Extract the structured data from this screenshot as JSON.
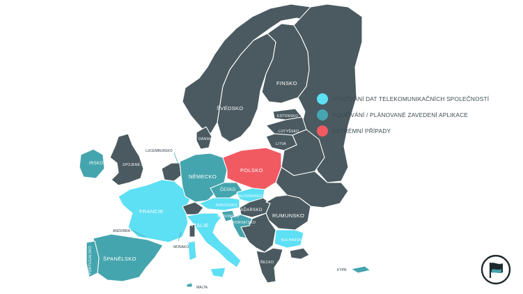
{
  "colors": {
    "dark": "#4a5a60",
    "telecom_data": "#5ddff4",
    "app": "#45a5ae",
    "extreme": "#f25a62",
    "text": "#3b4a50"
  },
  "legend": [
    {
      "label": "VYUŽÍVÁNÍ DAT TELEKOMUNIKAČNÍCH SPOLEČNOSTÍ",
      "color": "#5ddff4"
    },
    {
      "label": "POUŽÍVÁNÍ / PLÁNOVANÉ ZAVEDENÍ APLIKACE",
      "color": "#45a5ae"
    },
    {
      "label": "EXTRÉMNÍ PŘÍPADY",
      "color": "#f25a62"
    }
  ],
  "countries": {
    "finsko": "FINSKO",
    "svedsko": "ŠVÉDSKO",
    "estonsko": "ESTONSKO",
    "lotyssko": "LOTYŠSKO",
    "litva": "LITVA",
    "dansko": "DÁNSKO",
    "irsko": "IRSKO",
    "uk": "SPOJENÉ KRÁLOVSTVÍ",
    "lucembursko": "LUCEMBURSKO",
    "nemecko": "NĚMECKO",
    "polsko": "POLSKO",
    "cesko": "ČESKO",
    "slovensko": "SLOVENSKO",
    "rakousko": "RAKOUSKO",
    "madarsko": "MAĎARSKO",
    "rumunsko": "RUMUNSKO",
    "francie": "FRANCIE",
    "andorra": "ANDORRA",
    "monako": "MONAKO",
    "italie": "ITÁLIE",
    "slovinsko": "SLOVINSKO",
    "chorvatsko": "CHORVATSKO",
    "bulharsko": "BULHARSKO",
    "recko": "ŘECKO",
    "spanelsko": "ŠPANĚLSKO",
    "portugalsko": "PORTUGALSKO",
    "malta": "MALTA",
    "kypr": "KYPR"
  },
  "logo": "pirate-party-logo"
}
